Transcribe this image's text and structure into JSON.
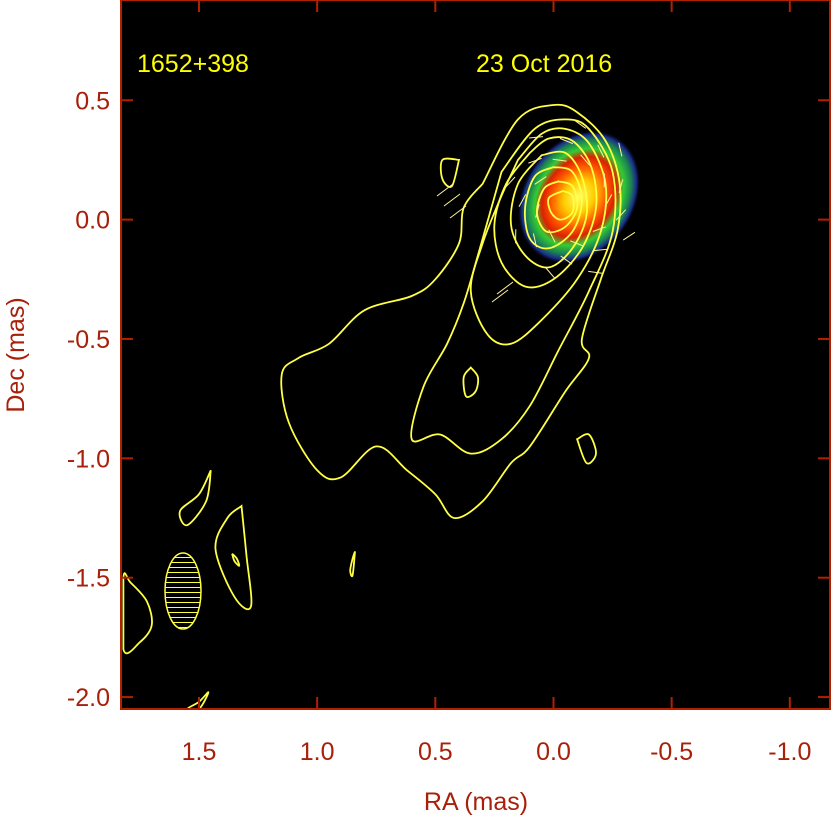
{
  "chart_data": {
    "type": "contour",
    "source_label": "1652+398",
    "date_label": "23 Oct 2016",
    "xlabel": "RA (mas)",
    "ylabel": "Dec (mas)",
    "xlim": [
      1.83,
      -1.17
    ],
    "ylim": [
      -2.05,
      0.92
    ],
    "x_ticks": [
      1.5,
      1.0,
      0.5,
      0.0,
      -0.5,
      -1.0
    ],
    "x_tick_labels": [
      "1.5",
      "1.0",
      "0.5",
      "0.0",
      "-0.5",
      "-1.0"
    ],
    "y_ticks": [
      0.5,
      0.0,
      -0.5,
      -1.0,
      -1.5,
      -2.0
    ],
    "y_tick_labels": [
      "0.5",
      "0.0",
      "-0.5",
      "-1.0",
      "-1.5",
      "-2.0"
    ],
    "grid": false,
    "colors": {
      "background": "#000000",
      "frame": "#b22000",
      "labels": "#a8200a",
      "contours": "#ffff44",
      "text_in_plot": "#ffff00"
    },
    "beam": {
      "center": [
        1.6,
        -1.6
      ],
      "major_axis_mas": 0.33,
      "minor_axis_mas": 0.16,
      "position_angle_deg": 0
    },
    "core_peak": {
      "ra": -0.08,
      "dec": 0.08
    },
    "contours": [
      {
        "level": 1,
        "ra": [
          0.3,
          0.15,
          0.0,
          -0.1,
          -0.22,
          -0.28,
          -0.27,
          -0.2,
          -0.12,
          -0.15,
          -0.05,
          0.1,
          0.18,
          0.3,
          0.42,
          0.5,
          0.62,
          0.75,
          0.9,
          1.0,
          1.12,
          1.15,
          1.08,
          0.95,
          0.8,
          0.6,
          0.5,
          0.4,
          0.38,
          0.3
        ],
        "dec": [
          0.15,
          0.42,
          0.48,
          0.45,
          0.33,
          0.15,
          -0.05,
          -0.25,
          -0.5,
          -0.58,
          -0.72,
          -0.95,
          -1.02,
          -1.18,
          -1.25,
          -1.15,
          -1.05,
          -0.95,
          -1.08,
          -1.05,
          -0.85,
          -0.65,
          -0.58,
          -0.52,
          -0.38,
          -0.32,
          -0.25,
          -0.1,
          0.05,
          0.15
        ]
      },
      {
        "level": 2,
        "ra": [
          0.22,
          0.08,
          -0.05,
          -0.15,
          -0.25,
          -0.25,
          -0.15,
          -0.02,
          0.1,
          0.22,
          0.35,
          0.48,
          0.6,
          0.55,
          0.45,
          0.38,
          0.32,
          0.22
        ],
        "dec": [
          0.2,
          0.38,
          0.42,
          0.38,
          0.2,
          -0.05,
          -0.3,
          -0.55,
          -0.78,
          -0.92,
          -0.98,
          -0.9,
          -0.92,
          -0.7,
          -0.52,
          -0.35,
          -0.15,
          0.2
        ]
      },
      {
        "level": 4,
        "ra": [
          0.15,
          0.05,
          -0.05,
          -0.15,
          -0.22,
          -0.2,
          -0.1,
          0.05,
          0.18,
          0.28,
          0.35,
          0.3,
          0.22,
          0.15
        ],
        "dec": [
          0.25,
          0.36,
          0.38,
          0.32,
          0.15,
          -0.05,
          -0.25,
          -0.42,
          -0.52,
          -0.48,
          -0.3,
          -0.1,
          0.1,
          0.25
        ]
      },
      {
        "level": 8,
        "ra": [
          0.1,
          0.02,
          -0.08,
          -0.16,
          -0.18,
          -0.12,
          0.0,
          0.12,
          0.22,
          0.25,
          0.2,
          0.1
        ],
        "dec": [
          0.28,
          0.34,
          0.33,
          0.22,
          0.05,
          -0.12,
          -0.25,
          -0.28,
          -0.18,
          -0.02,
          0.15,
          0.28
        ]
      },
      {
        "level": 16,
        "ra": [
          0.05,
          -0.05,
          -0.12,
          -0.14,
          -0.08,
          0.02,
          0.12,
          0.18,
          0.15,
          0.05
        ],
        "dec": [
          0.27,
          0.28,
          0.18,
          0.02,
          -0.12,
          -0.2,
          -0.15,
          -0.02,
          0.15,
          0.27
        ]
      },
      {
        "level": 32,
        "ra": [
          0.0,
          -0.08,
          -0.12,
          -0.08,
          0.02,
          0.1,
          0.12,
          0.08,
          0.0
        ],
        "dec": [
          0.22,
          0.2,
          0.08,
          -0.05,
          -0.12,
          -0.08,
          0.05,
          0.18,
          0.22
        ]
      },
      {
        "level": 64,
        "ra": [
          -0.02,
          -0.08,
          -0.1,
          -0.05,
          0.03,
          0.07,
          0.04,
          -0.02
        ],
        "dec": [
          0.16,
          0.14,
          0.05,
          -0.03,
          -0.05,
          0.03,
          0.13,
          0.16
        ]
      },
      {
        "level": 128,
        "ra": [
          -0.04,
          -0.08,
          -0.08,
          -0.03,
          0.01,
          0.02,
          -0.04
        ],
        "dec": [
          0.12,
          0.1,
          0.03,
          0.0,
          0.03,
          0.09,
          0.12
        ]
      }
    ],
    "islands": [
      {
        "ra": [
          0.4,
          0.47,
          0.47,
          0.43,
          0.4
        ],
        "dec": [
          0.25,
          0.25,
          0.17,
          0.14,
          0.25
        ]
      },
      {
        "ra": [
          0.35,
          0.32,
          0.33,
          0.37,
          0.38,
          0.35
        ],
        "dec": [
          -0.62,
          -0.66,
          -0.72,
          -0.74,
          -0.66,
          -0.62
        ]
      },
      {
        "ra": [
          -0.1,
          -0.15,
          -0.18,
          -0.14,
          -0.1
        ],
        "dec": [
          -0.92,
          -0.9,
          -0.98,
          -1.02,
          -0.92
        ]
      },
      {
        "ra": [
          1.45,
          1.5,
          1.58,
          1.55,
          1.47,
          1.45
        ],
        "dec": [
          -1.05,
          -1.15,
          -1.22,
          -1.28,
          -1.18,
          -1.05
        ]
      },
      {
        "ra": [
          1.32,
          1.38,
          1.43,
          1.35,
          1.28,
          1.3,
          1.32
        ],
        "dec": [
          -1.2,
          -1.25,
          -1.38,
          -1.58,
          -1.62,
          -1.4,
          -1.2
        ]
      },
      {
        "ra": [
          1.36,
          1.34,
          1.33,
          1.35,
          1.36
        ],
        "dec": [
          -1.4,
          -1.42,
          -1.45,
          -1.43,
          -1.4
        ]
      },
      {
        "ra": [
          0.84,
          0.85,
          0.86,
          0.85,
          0.84
        ],
        "dec": [
          -1.39,
          -1.42,
          -1.47,
          -1.49,
          -1.39
        ]
      },
      {
        "ra": [
          1.82,
          1.79,
          1.72,
          1.7,
          1.75,
          1.82
        ],
        "dec": [
          -1.5,
          -1.52,
          -1.6,
          -1.7,
          -1.77,
          -1.8
        ]
      },
      {
        "ra": [
          1.55,
          1.5,
          1.46,
          1.5
        ],
        "dec": [
          -2.05,
          -2.02,
          -1.98,
          -2.05
        ]
      }
    ]
  }
}
